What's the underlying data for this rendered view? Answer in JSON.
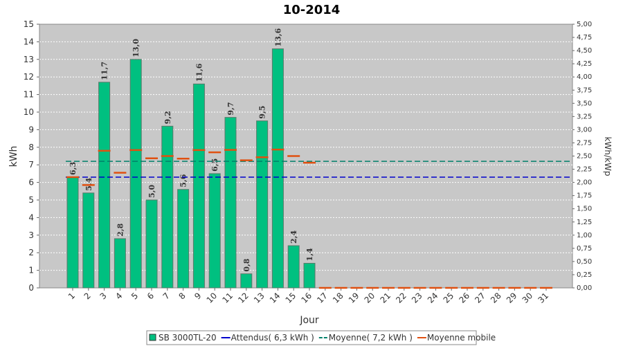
{
  "chart_data": {
    "type": "bar",
    "title": "10-2014",
    "x_label": "Jour",
    "y_label": "kWh",
    "y2_label": "kWh/kWp",
    "categories": [
      "1",
      "2",
      "3",
      "4",
      "5",
      "6",
      "7",
      "8",
      "9",
      "10",
      "11",
      "12",
      "13",
      "14",
      "15",
      "16",
      "17",
      "18",
      "19",
      "20",
      "21",
      "22",
      "23",
      "24",
      "25",
      "26",
      "27",
      "28",
      "29",
      "30",
      "31"
    ],
    "series": [
      {
        "name": "SB 3000TL-20",
        "color": "#00c080",
        "values": [
          6.3,
          5.4,
          11.7,
          2.8,
          13.0,
          5.0,
          9.2,
          5.6,
          11.6,
          6.5,
          9.7,
          0.8,
          9.5,
          13.6,
          2.4,
          1.4,
          0,
          0,
          0,
          0,
          0,
          0,
          0,
          0,
          0,
          0,
          0,
          0,
          0,
          0,
          0
        ],
        "value_labels": [
          "6,3",
          "5,4",
          "11,7",
          "2,8",
          "13,0",
          "5,0",
          "9,2",
          "5,6",
          "11,6",
          "6,5",
          "9,7",
          "0,8",
          "9,5",
          "13,6",
          "2,4",
          "1,4",
          null,
          null,
          null,
          null,
          null,
          null,
          null,
          null,
          null,
          null,
          null,
          null,
          null,
          null,
          null
        ]
      },
      {
        "name": "Attendus( 6,3 kWh )",
        "color": "#0000cc",
        "value": 6.3
      },
      {
        "name": "Moyenne( 7,2 kWh )",
        "color": "#00806a",
        "value": 7.2
      },
      {
        "name": "Moyenne mobile",
        "color": "#e05010",
        "values": [
          6.3,
          5.85,
          7.8,
          6.55,
          7.84,
          7.37,
          7.5,
          7.35,
          7.84,
          7.71,
          7.85,
          7.26,
          7.43,
          7.87,
          7.5,
          7.12,
          0,
          0,
          0,
          0,
          0,
          0,
          0,
          0,
          0,
          0,
          0,
          0,
          0,
          0,
          0
        ]
      }
    ],
    "ylim": [
      0,
      15
    ],
    "yticks": [
      0,
      1,
      2,
      3,
      4,
      5,
      6,
      7,
      8,
      9,
      10,
      11,
      12,
      13,
      14,
      15
    ],
    "y2lim": [
      0,
      5
    ],
    "y2ticks": [
      {
        "value": 0,
        "label": "0,00"
      },
      {
        "value": 0.25,
        "label": "0,25"
      },
      {
        "value": 0.5,
        "label": "0,50"
      },
      {
        "value": 0.75,
        "label": "0,75"
      },
      {
        "value": 1,
        "label": "1,00"
      },
      {
        "value": 1.25,
        "label": "1,25"
      },
      {
        "value": 1.5,
        "label": "1,50"
      },
      {
        "value": 1.75,
        "label": "1,75"
      },
      {
        "value": 2,
        "label": "2,00"
      },
      {
        "value": 2.25,
        "label": "2,25"
      },
      {
        "value": 2.5,
        "label": "2,50"
      },
      {
        "value": 2.75,
        "label": "2,75"
      },
      {
        "value": 3,
        "label": "3,00"
      },
      {
        "value": 3.25,
        "label": "3,25"
      },
      {
        "value": 3.5,
        "label": "3,50"
      },
      {
        "value": 3.75,
        "label": "3,75"
      },
      {
        "value": 4,
        "label": "4,00"
      },
      {
        "value": 4.25,
        "label": "4,25"
      },
      {
        "value": 4.5,
        "label": "4,50"
      },
      {
        "value": 4.75,
        "label": "4,75"
      },
      {
        "value": 5,
        "label": "5,00"
      }
    ],
    "grid": true
  }
}
